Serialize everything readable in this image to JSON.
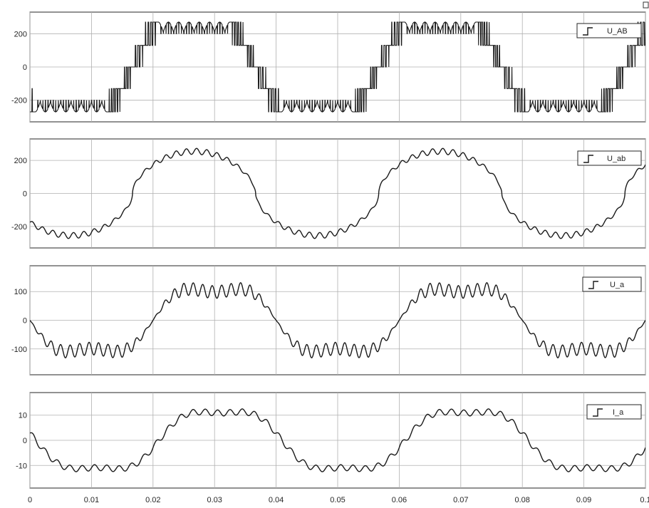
{
  "chart_data": [
    {
      "type": "line",
      "series": [
        {
          "name": "U_AB",
          "kind": "pwm_line"
        }
      ],
      "ylim": [
        -330,
        330
      ],
      "yticks": [
        -200,
        0,
        200
      ],
      "ytick_labels": [
        "-200",
        "0",
        "200"
      ],
      "xlim": [
        0,
        0.1
      ],
      "grid": true,
      "legend_position": "top-right"
    },
    {
      "type": "line",
      "series": [
        {
          "name": "U_ab",
          "kind": "filtered_line",
          "amplitude": 255,
          "ripple": 18
        }
      ],
      "ylim": [
        -330,
        330
      ],
      "yticks": [
        -200,
        0,
        200
      ],
      "ytick_labels": [
        "-200",
        "0",
        "200"
      ],
      "xlim": [
        0,
        0.1
      ],
      "grid": true,
      "legend_position": "top-right"
    },
    {
      "type": "line",
      "series": [
        {
          "name": "U_a",
          "kind": "phase",
          "amplitude": 145,
          "ripple": 22
        }
      ],
      "ylim": [
        -190,
        190
      ],
      "yticks": [
        -100,
        0,
        100
      ],
      "ytick_labels": [
        "-100",
        "0",
        "100"
      ],
      "xlim": [
        0,
        0.1
      ],
      "grid": true,
      "legend_position": "top-right"
    },
    {
      "type": "line",
      "series": [
        {
          "name": "I_a",
          "kind": "current",
          "amplitude": 14.5,
          "ripple": 1.2
        }
      ],
      "ylim": [
        -19,
        19
      ],
      "yticks": [
        -10,
        0,
        10
      ],
      "ytick_labels": [
        "-10",
        "0",
        "10"
      ],
      "xlim": [
        0,
        0.1
      ],
      "grid": true,
      "legend_position": "top-right"
    }
  ],
  "x_axis": {
    "ticks": [
      0,
      0.01,
      0.02,
      0.03,
      0.04,
      0.05,
      0.06,
      0.07,
      0.08,
      0.09,
      0.1
    ],
    "tick_labels": [
      "0",
      "0.01",
      "0.02",
      "0.03",
      "0.04",
      "0.05",
      "0.06",
      "0.07",
      "0.08",
      "0.09",
      "0.1"
    ]
  },
  "fundamental_hz": 25
}
